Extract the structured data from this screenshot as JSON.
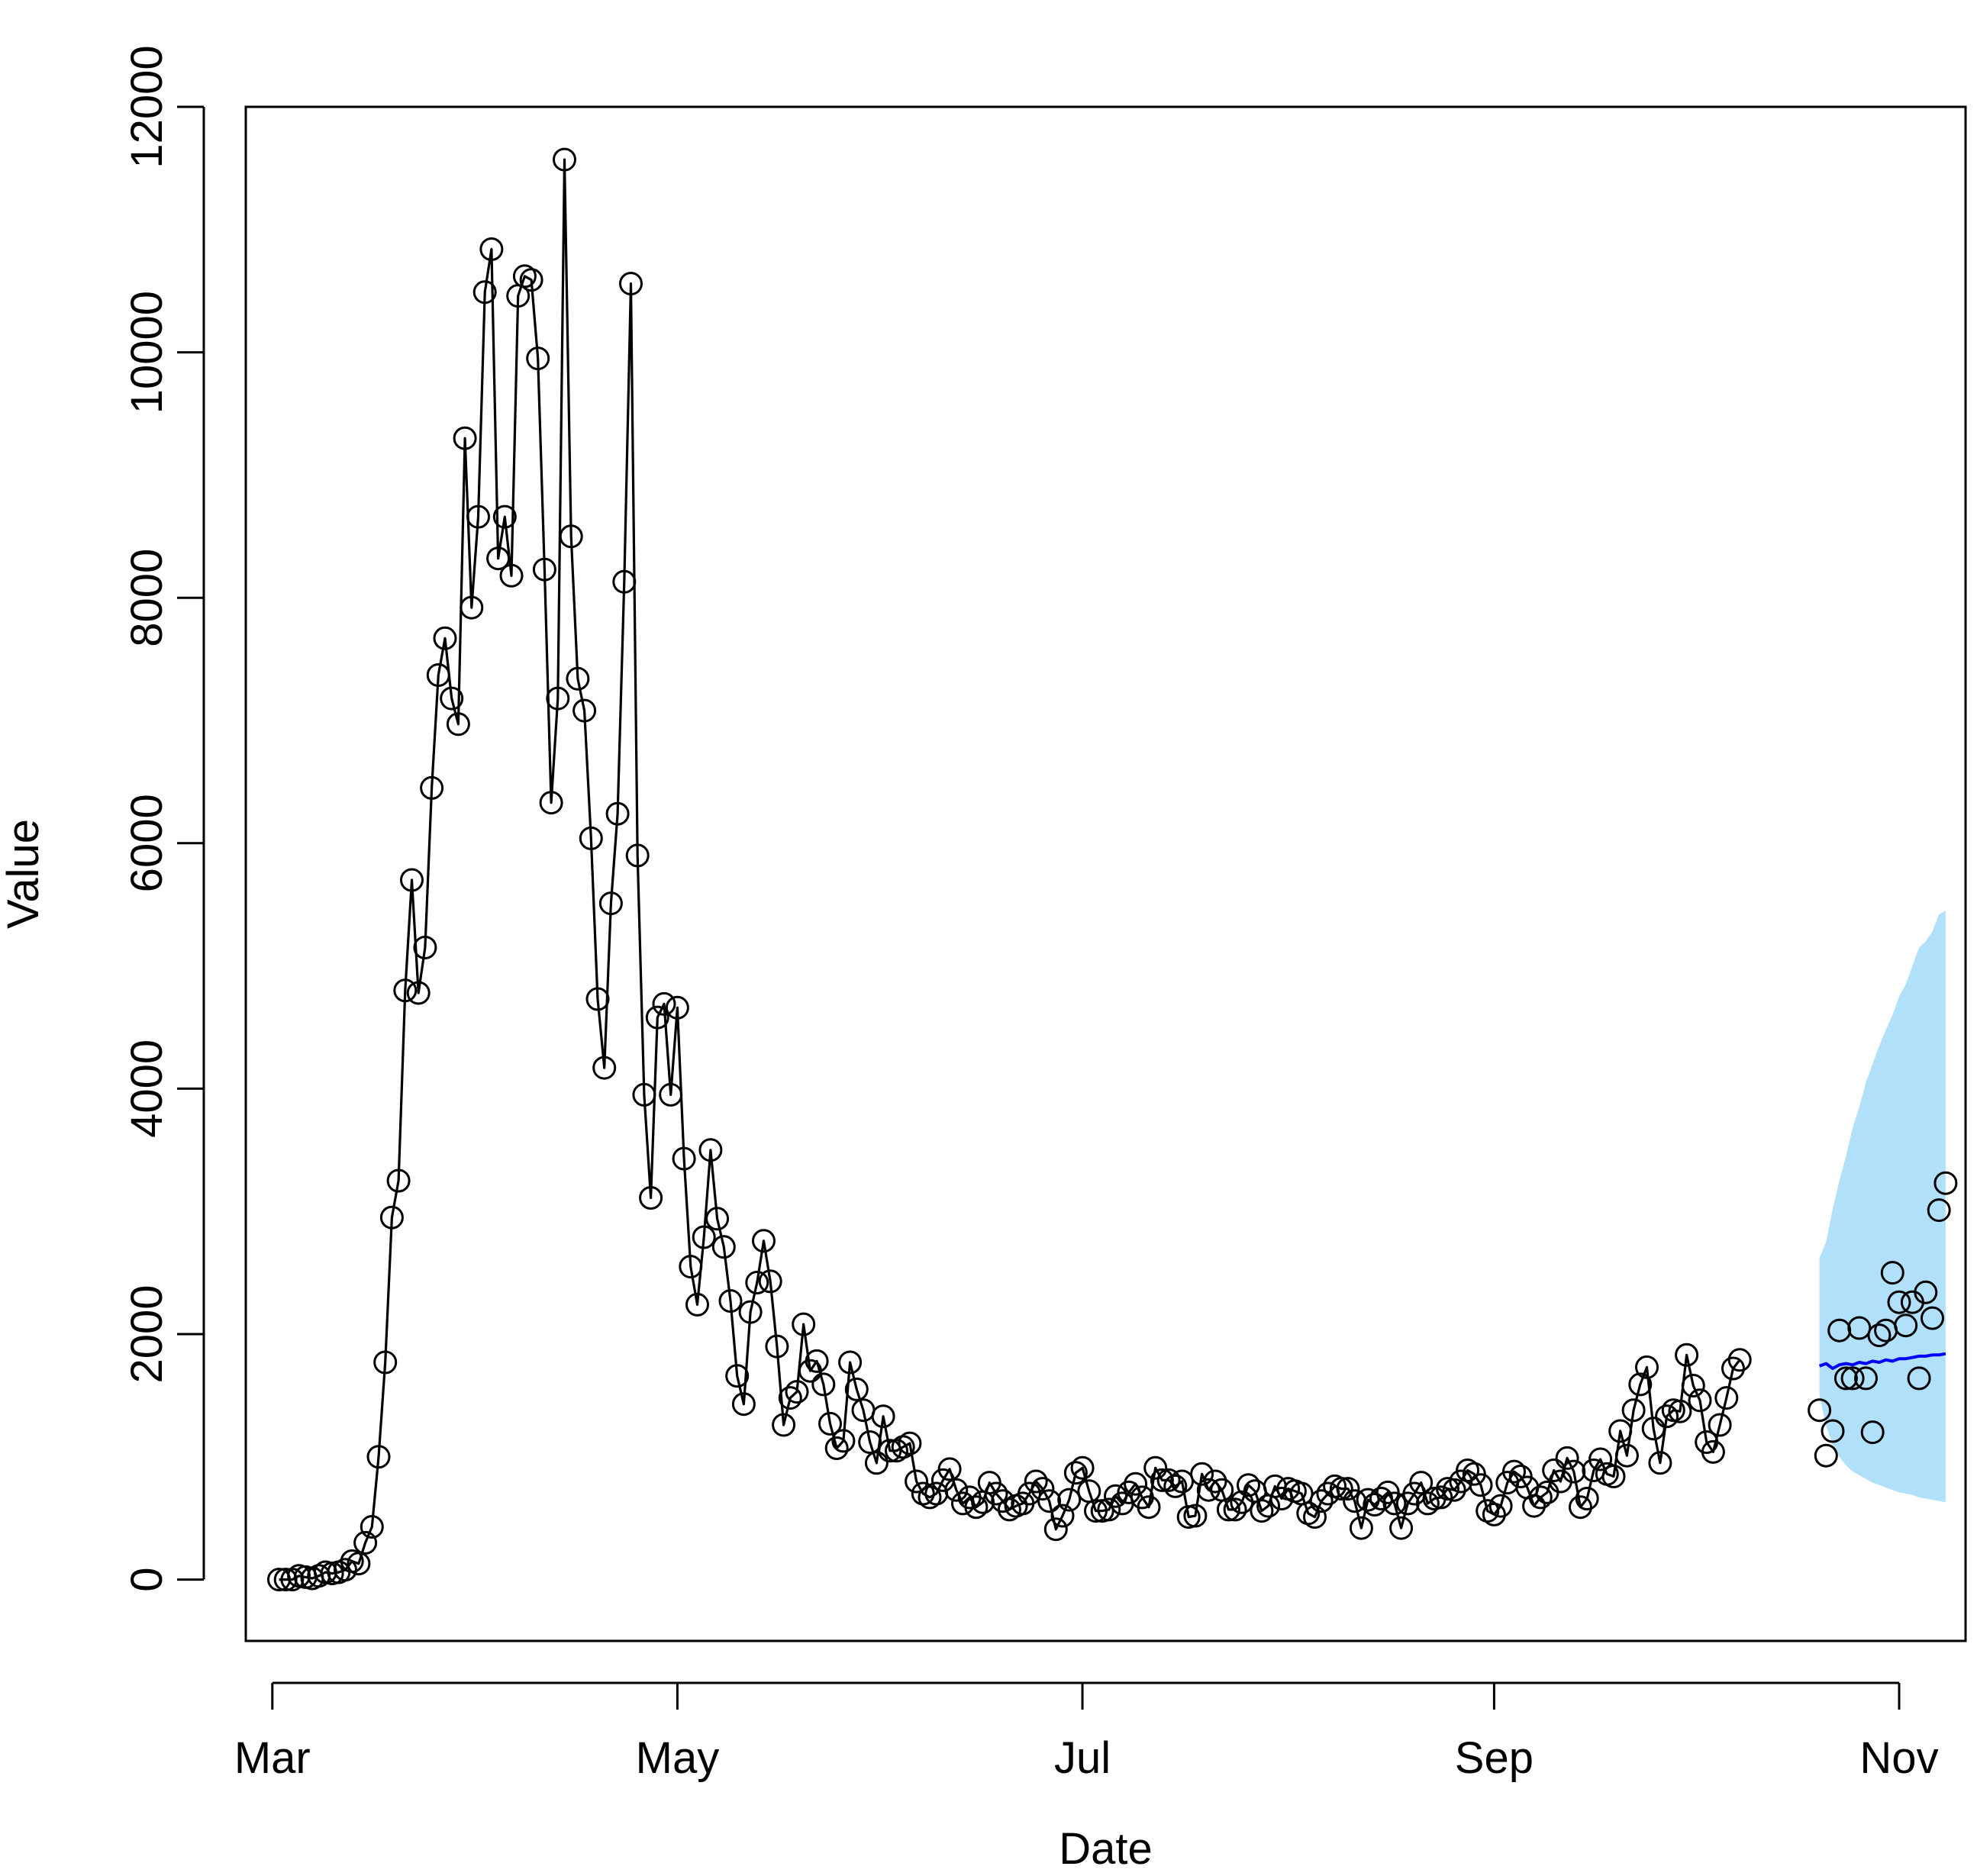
{
  "chart_data": {
    "type": "line",
    "title": "",
    "xlabel": "Date",
    "ylabel": "Value",
    "xlim": [
      "2020-02-26",
      "2020-11-11"
    ],
    "ylim": [
      -500,
      12000
    ],
    "x_ticks": [
      {
        "label": "Mar",
        "date": "2020-03-01"
      },
      {
        "label": "May",
        "date": "2020-05-01"
      },
      {
        "label": "Jul",
        "date": "2020-07-01"
      },
      {
        "label": "Sep",
        "date": "2020-09-01"
      },
      {
        "label": "Nov",
        "date": "2020-11-01"
      }
    ],
    "y_ticks": [
      0,
      2000,
      4000,
      6000,
      8000,
      10000,
      12000
    ],
    "grid": false,
    "legend": "none",
    "colors": {
      "observed": "#000000",
      "forecast_line": "#0000ff",
      "forecast_band": "#b0e0fa"
    },
    "series": [
      {
        "role": "observed",
        "style": "line-with-points",
        "x_start": "2020-03-02",
        "values": [
          0,
          0,
          0,
          30,
          20,
          10,
          30,
          60,
          50,
          60,
          80,
          150,
          130,
          300,
          430,
          1000,
          1770,
          2950,
          3250,
          4800,
          5700,
          4780,
          5150,
          6450,
          7370,
          7670,
          7180,
          6970,
          9300,
          7920,
          8660,
          10490,
          10840,
          8320,
          8660,
          8180,
          10460,
          10620,
          10590,
          9950,
          8230,
          6330,
          7180,
          11570,
          8500,
          7340,
          7080,
          6040,
          4730,
          4170,
          5510,
          6240,
          8130,
          10560,
          5900,
          3950,
          3110,
          4580,
          4690,
          3950,
          4660,
          3430,
          2550,
          2240,
          2790,
          3500,
          2940,
          2710,
          2270,
          1660,
          1430,
          2180,
          2420,
          2760,
          2430,
          1900,
          1260,
          1480,
          1530,
          2080,
          1700,
          1780,
          1590,
          1270,
          1070,
          1130,
          1770,
          1550,
          1380,
          1120,
          950,
          1330,
          1050,
          1050,
          1080,
          1110,
          800,
          700,
          670,
          700,
          810,
          900,
          730,
          620,
          670,
          590,
          630,
          790,
          700,
          640,
          570,
          600,
          620,
          700,
          800,
          740,
          640,
          410,
          520,
          650,
          870,
          910,
          720,
          560,
          560,
          570,
          680,
          620,
          710,
          780,
          670,
          590,
          910,
          810,
          810,
          760,
          800,
          510,
          520,
          860,
          730,
          800,
          730,
          570,
          570,
          630,
          770,
          720,
          560,
          600,
          760,
          660,
          740,
          720,
          700,
          540,
          510,
          640,
          700,
          760,
          740,
          740,
          640,
          420,
          650,
          610,
          660,
          710,
          620,
          420,
          620,
          700,
          790,
          620,
          660,
          670,
          740,
          730,
          800,
          890,
          860,
          770,
          560,
          530,
          600,
          790,
          880,
          840,
          750,
          600,
          670,
          710,
          890,
          800,
          990,
          880,
          590,
          660,
          890,
          980,
          860,
          840,
          1210,
          1010,
          1380,
          1590,
          1730,
          1230,
          950,
          1330,
          1380,
          1370,
          1830,
          1580,
          1460,
          1120,
          1040,
          1260,
          1480,
          1720,
          1790
        ]
      },
      {
        "role": "held-out",
        "style": "points",
        "x_start": "2020-10-20",
        "values": [
          1380,
          1010,
          1210,
          2030,
          1640,
          1640,
          2050,
          1640,
          1200,
          1990,
          2030,
          2500,
          2260,
          2070,
          2260,
          1640,
          2340,
          2130,
          3010,
          3230
        ]
      },
      {
        "role": "forecast",
        "style": "line",
        "x_start": "2020-10-20",
        "values": [
          1740,
          1760,
          1720,
          1750,
          1760,
          1750,
          1770,
          1760,
          1780,
          1770,
          1790,
          1780,
          1800,
          1800,
          1810,
          1820,
          1820,
          1830,
          1830,
          1840
        ]
      },
      {
        "role": "prediction-interval",
        "style": "band",
        "x_start": "2020-10-20",
        "lower": [
          1500,
          1250,
          1100,
          1000,
          930,
          880,
          850,
          820,
          790,
          770,
          750,
          730,
          710,
          700,
          690,
          670,
          660,
          650,
          640,
          630
        ],
        "upper": [
          2620,
          2750,
          3020,
          3250,
          3450,
          3680,
          3850,
          4050,
          4200,
          4350,
          4480,
          4600,
          4750,
          4850,
          5000,
          5150,
          5200,
          5280,
          5420,
          5450
        ]
      }
    ]
  }
}
